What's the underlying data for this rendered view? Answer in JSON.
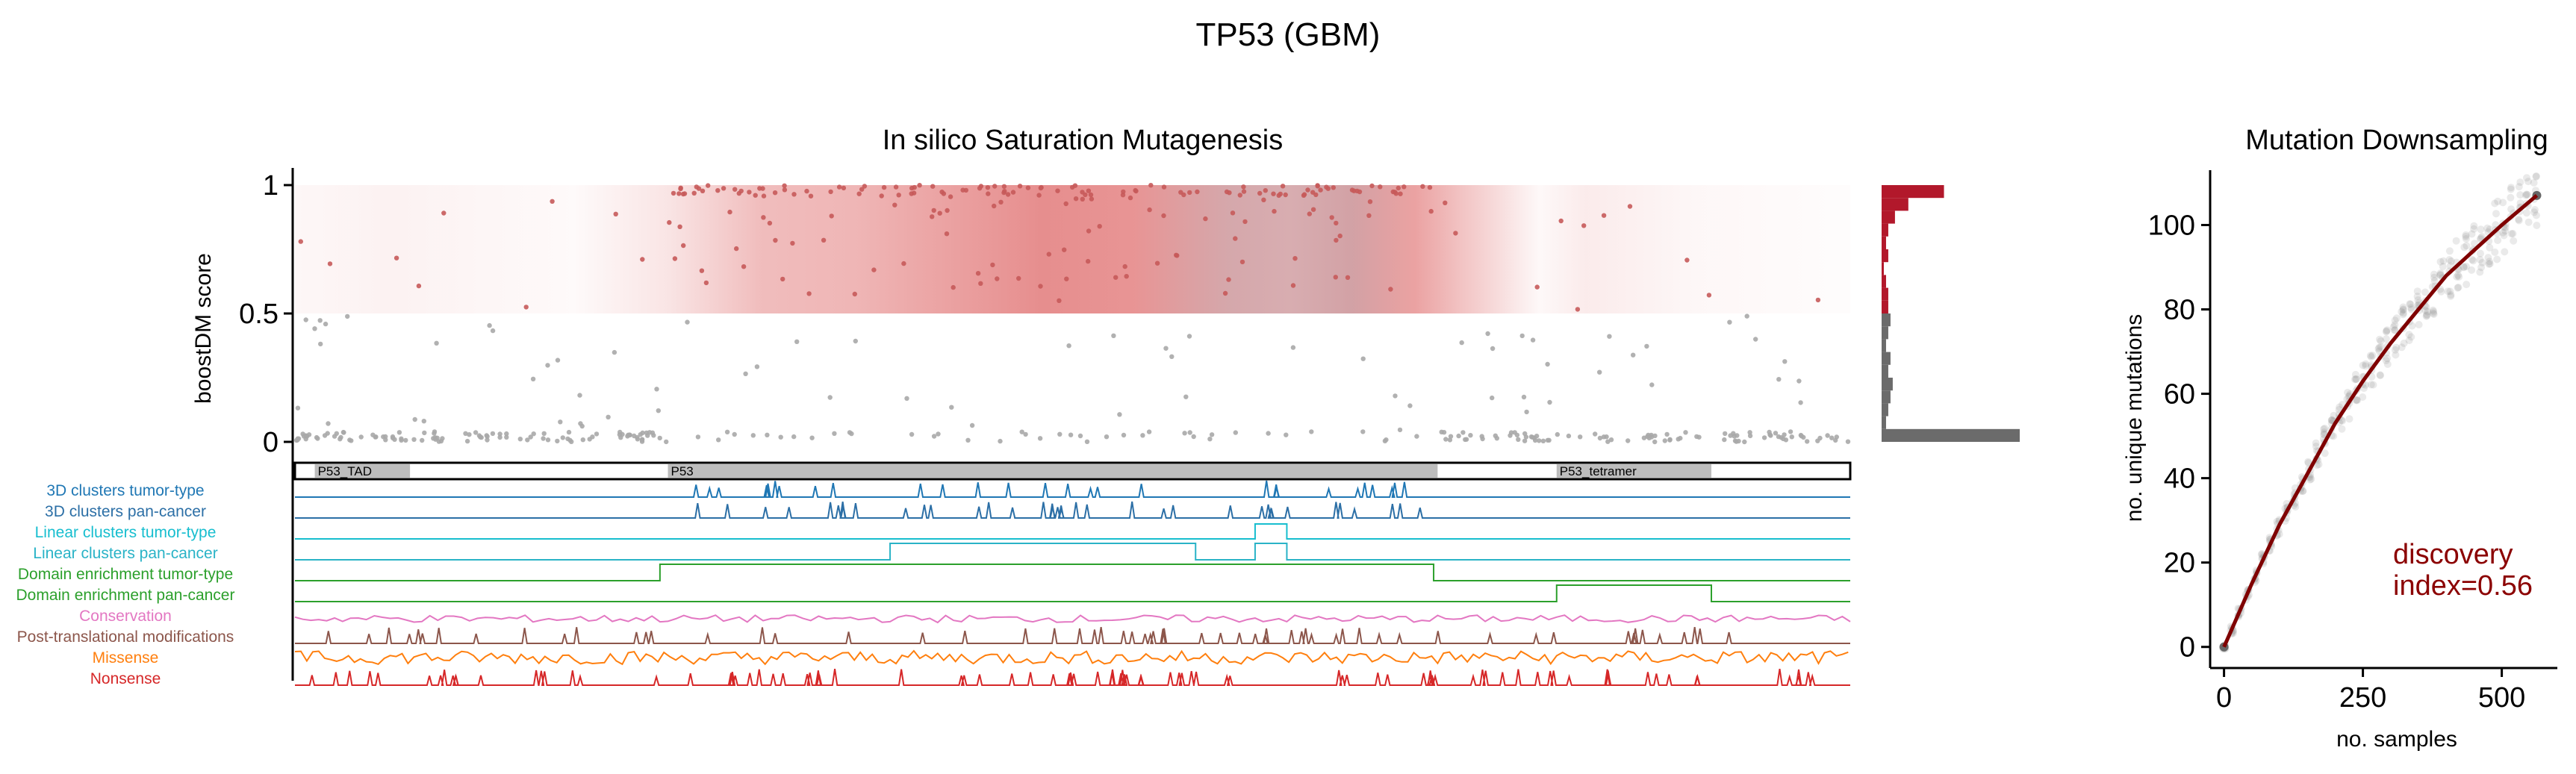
{
  "title": "TP53 (GBM)",
  "colors": {
    "positive": "#b2182b",
    "negative": "#6b6b6b",
    "point_pos": "#c75a5a",
    "point_neg": "#a8a8a8",
    "domain_fill": "#bdbdbd",
    "downsample_line": "#7f0000",
    "discovery_text": "#8b0000"
  },
  "chart_data": [
    {
      "type": "scatter",
      "title": "In silico Saturation Mutagenesis",
      "ylabel": "boostDM score",
      "ylim": [
        0,
        1
      ],
      "yticks": [
        0,
        0.5,
        1
      ],
      "ytick_labels": [
        "0",
        "0.5",
        "1"
      ],
      "xlim": [
        1,
        393
      ],
      "threshold": 0.5,
      "domains": [
        {
          "name": "P53_TAD",
          "start": 6,
          "end": 30
        },
        {
          "name": "P53",
          "start": 95,
          "end": 289
        },
        {
          "name": "P53_tetramer",
          "start": 319,
          "end": 358
        }
      ],
      "density_bands": [
        {
          "start": 1,
          "end": 30,
          "intensity": 0.12
        },
        {
          "start": 95,
          "end": 135,
          "intensity": 0.45
        },
        {
          "start": 155,
          "end": 230,
          "intensity": 0.75
        },
        {
          "start": 230,
          "end": 280,
          "intensity": 0.85
        },
        {
          "start": 280,
          "end": 300,
          "intensity": 0.5
        },
        {
          "start": 320,
          "end": 393,
          "intensity": 0.1
        }
      ],
      "tracks": [
        {
          "name": "3D clusters tumor-type",
          "color": "#1f77b4"
        },
        {
          "name": "3D clusters pan-cancer",
          "color": "#2c6fa6"
        },
        {
          "name": "Linear clusters tumor-type",
          "color": "#17becf"
        },
        {
          "name": "Linear clusters pan-cancer",
          "color": "#2ab3c7"
        },
        {
          "name": "Domain enrichment tumor-type",
          "color": "#2ca02c"
        },
        {
          "name": "Domain enrichment pan-cancer",
          "color": "#2ca02c"
        },
        {
          "name": "Conservation",
          "color": "#e377c2"
        },
        {
          "name": "Post-translational modifications",
          "color": "#8c564b"
        },
        {
          "name": "Missense",
          "color": "#ff7f0e"
        },
        {
          "name": "Nonsense",
          "color": "#d62728"
        }
      ]
    },
    {
      "type": "bar",
      "orientation": "horizontal",
      "description_of_bins": "score histogram aligned to boostDM score axis",
      "bins": [
        {
          "score_low": 0.95,
          "score_high": 1.0,
          "count": 28
        },
        {
          "score_low": 0.9,
          "score_high": 0.95,
          "count": 12
        },
        {
          "score_low": 0.85,
          "score_high": 0.9,
          "count": 6
        },
        {
          "score_low": 0.8,
          "score_high": 0.85,
          "count": 3
        },
        {
          "score_low": 0.75,
          "score_high": 0.8,
          "count": 2
        },
        {
          "score_low": 0.7,
          "score_high": 0.75,
          "count": 3
        },
        {
          "score_low": 0.65,
          "score_high": 0.7,
          "count": 1
        },
        {
          "score_low": 0.6,
          "score_high": 0.65,
          "count": 2
        },
        {
          "score_low": 0.55,
          "score_high": 0.6,
          "count": 3
        },
        {
          "score_low": 0.5,
          "score_high": 0.55,
          "count": 3
        },
        {
          "score_low": 0.45,
          "score_high": 0.5,
          "count": 4
        },
        {
          "score_low": 0.4,
          "score_high": 0.45,
          "count": 3
        },
        {
          "score_low": 0.35,
          "score_high": 0.4,
          "count": 2
        },
        {
          "score_low": 0.3,
          "score_high": 0.35,
          "count": 4
        },
        {
          "score_low": 0.25,
          "score_high": 0.3,
          "count": 3
        },
        {
          "score_low": 0.2,
          "score_high": 0.25,
          "count": 5
        },
        {
          "score_low": 0.15,
          "score_high": 0.2,
          "count": 4
        },
        {
          "score_low": 0.1,
          "score_high": 0.15,
          "count": 3
        },
        {
          "score_low": 0.05,
          "score_high": 0.1,
          "count": 2
        },
        {
          "score_low": 0.0,
          "score_high": 0.05,
          "count": 62
        }
      ]
    },
    {
      "type": "line",
      "title": "Mutation Downsampling",
      "xlabel": "no. samples",
      "ylabel": "no. unique mutations",
      "xlim": [
        -25,
        600
      ],
      "ylim": [
        -5,
        113
      ],
      "xticks": [
        0,
        250,
        500
      ],
      "yticks": [
        0,
        20,
        40,
        60,
        80,
        100
      ],
      "x": [
        0,
        50,
        100,
        150,
        200,
        250,
        300,
        350,
        400,
        450,
        500,
        563
      ],
      "y": [
        0,
        15,
        29,
        41,
        53,
        63,
        72,
        80,
        88,
        94,
        100,
        107
      ],
      "annotation": "discovery\nindex=0.56",
      "annotation_line1": "discovery",
      "annotation_line2": "index=0.56"
    }
  ]
}
